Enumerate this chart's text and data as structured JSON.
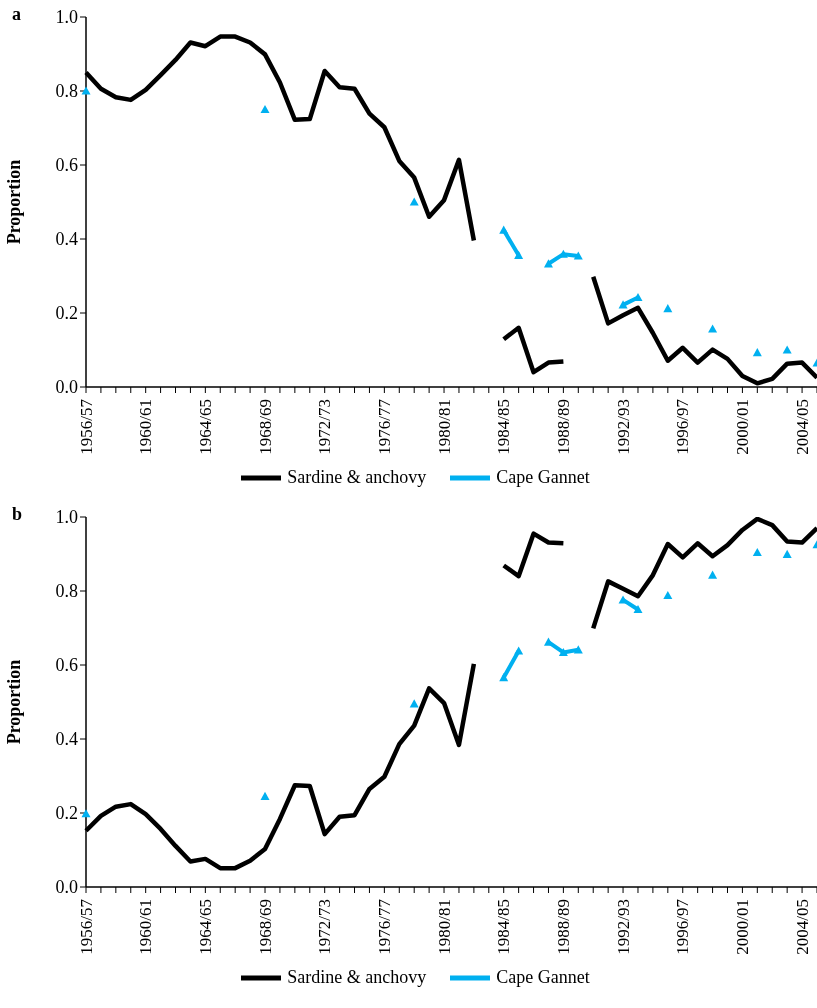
{
  "chart_data": [
    {
      "type": "line",
      "title": "a",
      "ylabel": "Proportion",
      "legend": "bottom",
      "ylim": [
        0,
        1
      ],
      "yticks": [
        {
          "value": 0,
          "label": "0.0"
        },
        {
          "value": 0.2,
          "label": "0.2"
        },
        {
          "value": 0.4,
          "label": "0.4"
        },
        {
          "value": 0.6,
          "label": "0.6"
        },
        {
          "value": 0.8,
          "label": "0.8"
        },
        {
          "value": 1,
          "label": "1.0"
        }
      ],
      "categories": [
        "1956/57",
        null,
        null,
        null,
        "1960/61",
        null,
        null,
        null,
        "1964/65",
        null,
        null,
        null,
        "1968/69",
        null,
        null,
        null,
        "1972/73",
        null,
        null,
        null,
        "1976/77",
        null,
        null,
        null,
        "1980/81",
        null,
        null,
        null,
        "1984/85",
        null,
        null,
        null,
        "1988/89",
        null,
        null,
        null,
        "1992/93",
        null,
        null,
        null,
        "1996/97",
        null,
        null,
        null,
        "2000/01",
        null,
        null,
        null,
        "2004/05",
        null
      ],
      "series": [
        {
          "name": "Sardine & anchovy",
          "color": "#000000",
          "marker": "none",
          "values": [
            0.85,
            0.806,
            0.783,
            0.776,
            0.803,
            0.843,
            0.884,
            0.931,
            0.921,
            0.947,
            0.947,
            0.931,
            0.899,
            0.823,
            0.722,
            0.724,
            0.854,
            0.81,
            0.806,
            0.739,
            0.702,
            0.611,
            0.566,
            0.46,
            0.505,
            0.614,
            0.396,
            null,
            0.129,
            0.16,
            0.04,
            0.066,
            0.069,
            null,
            0.298,
            0.172,
            0.194,
            0.214,
            0.146,
            0.071,
            0.106,
            0.066,
            0.101,
            0.076,
            0.03,
            0.01,
            0.022,
            0.063,
            0.066,
            0.025
          ]
        },
        {
          "name": "Cape Gannet",
          "color": "#00b0f0",
          "marker": "triangle",
          "values": [
            0.8,
            null,
            null,
            null,
            null,
            null,
            null,
            null,
            null,
            null,
            null,
            null,
            0.75,
            null,
            null,
            null,
            null,
            null,
            null,
            null,
            null,
            null,
            0.5,
            null,
            null,
            null,
            null,
            null,
            0.424,
            0.356,
            null,
            0.333,
            0.359,
            0.354,
            null,
            null,
            0.222,
            0.242,
            null,
            0.212,
            null,
            null,
            0.157,
            null,
            null,
            0.093,
            null,
            0.1,
            null,
            0.065
          ]
        }
      ]
    },
    {
      "type": "line",
      "title": "b",
      "ylabel": "Proportion",
      "legend": "bottom",
      "ylim": [
        0,
        1
      ],
      "yticks": [
        {
          "value": 0,
          "label": "0.0"
        },
        {
          "value": 0.2,
          "label": "0.2"
        },
        {
          "value": 0.4,
          "label": "0.4"
        },
        {
          "value": 0.6,
          "label": "0.6"
        },
        {
          "value": 0.8,
          "label": "0.8"
        },
        {
          "value": 1,
          "label": "1.0"
        }
      ],
      "categories": [
        "1956/57",
        null,
        null,
        null,
        "1960/61",
        null,
        null,
        null,
        "1964/65",
        null,
        null,
        null,
        "1968/69",
        null,
        null,
        null,
        "1972/73",
        null,
        null,
        null,
        "1976/77",
        null,
        null,
        null,
        "1980/81",
        null,
        null,
        null,
        "1984/85",
        null,
        null,
        null,
        "1988/89",
        null,
        null,
        null,
        "1992/93",
        null,
        null,
        null,
        "1996/97",
        null,
        null,
        null,
        "2000/01",
        null,
        null,
        null,
        "2004/05",
        null
      ],
      "series": [
        {
          "name": "Sardine & anchovy",
          "color": "#000000",
          "marker": "none",
          "values": [
            0.152,
            0.192,
            0.217,
            0.224,
            0.197,
            0.157,
            0.111,
            0.069,
            0.076,
            0.051,
            0.051,
            0.071,
            0.103,
            0.184,
            0.275,
            0.273,
            0.143,
            0.19,
            0.194,
            0.265,
            0.298,
            0.386,
            0.436,
            0.537,
            0.497,
            0.384,
            0.603,
            null,
            0.869,
            0.84,
            0.955,
            0.931,
            0.929,
            null,
            0.699,
            0.826,
            0.806,
            0.786,
            0.843,
            0.927,
            0.891,
            0.929,
            0.894,
            0.924,
            0.965,
            0.995,
            0.978,
            0.934,
            0.931,
            0.97
          ]
        },
        {
          "name": "Cape Gannet",
          "color": "#00b0f0",
          "marker": "triangle",
          "values": [
            0.198,
            null,
            null,
            null,
            null,
            null,
            null,
            null,
            null,
            null,
            null,
            null,
            0.245,
            null,
            null,
            null,
            null,
            null,
            null,
            null,
            null,
            null,
            0.495,
            null,
            null,
            null,
            null,
            null,
            0.566,
            0.638,
            null,
            0.662,
            0.634,
            0.641,
            null,
            null,
            0.776,
            0.75,
            null,
            0.788,
            null,
            null,
            0.843,
            null,
            null,
            0.904,
            null,
            0.899,
            null,
            0.925
          ]
        }
      ]
    }
  ]
}
